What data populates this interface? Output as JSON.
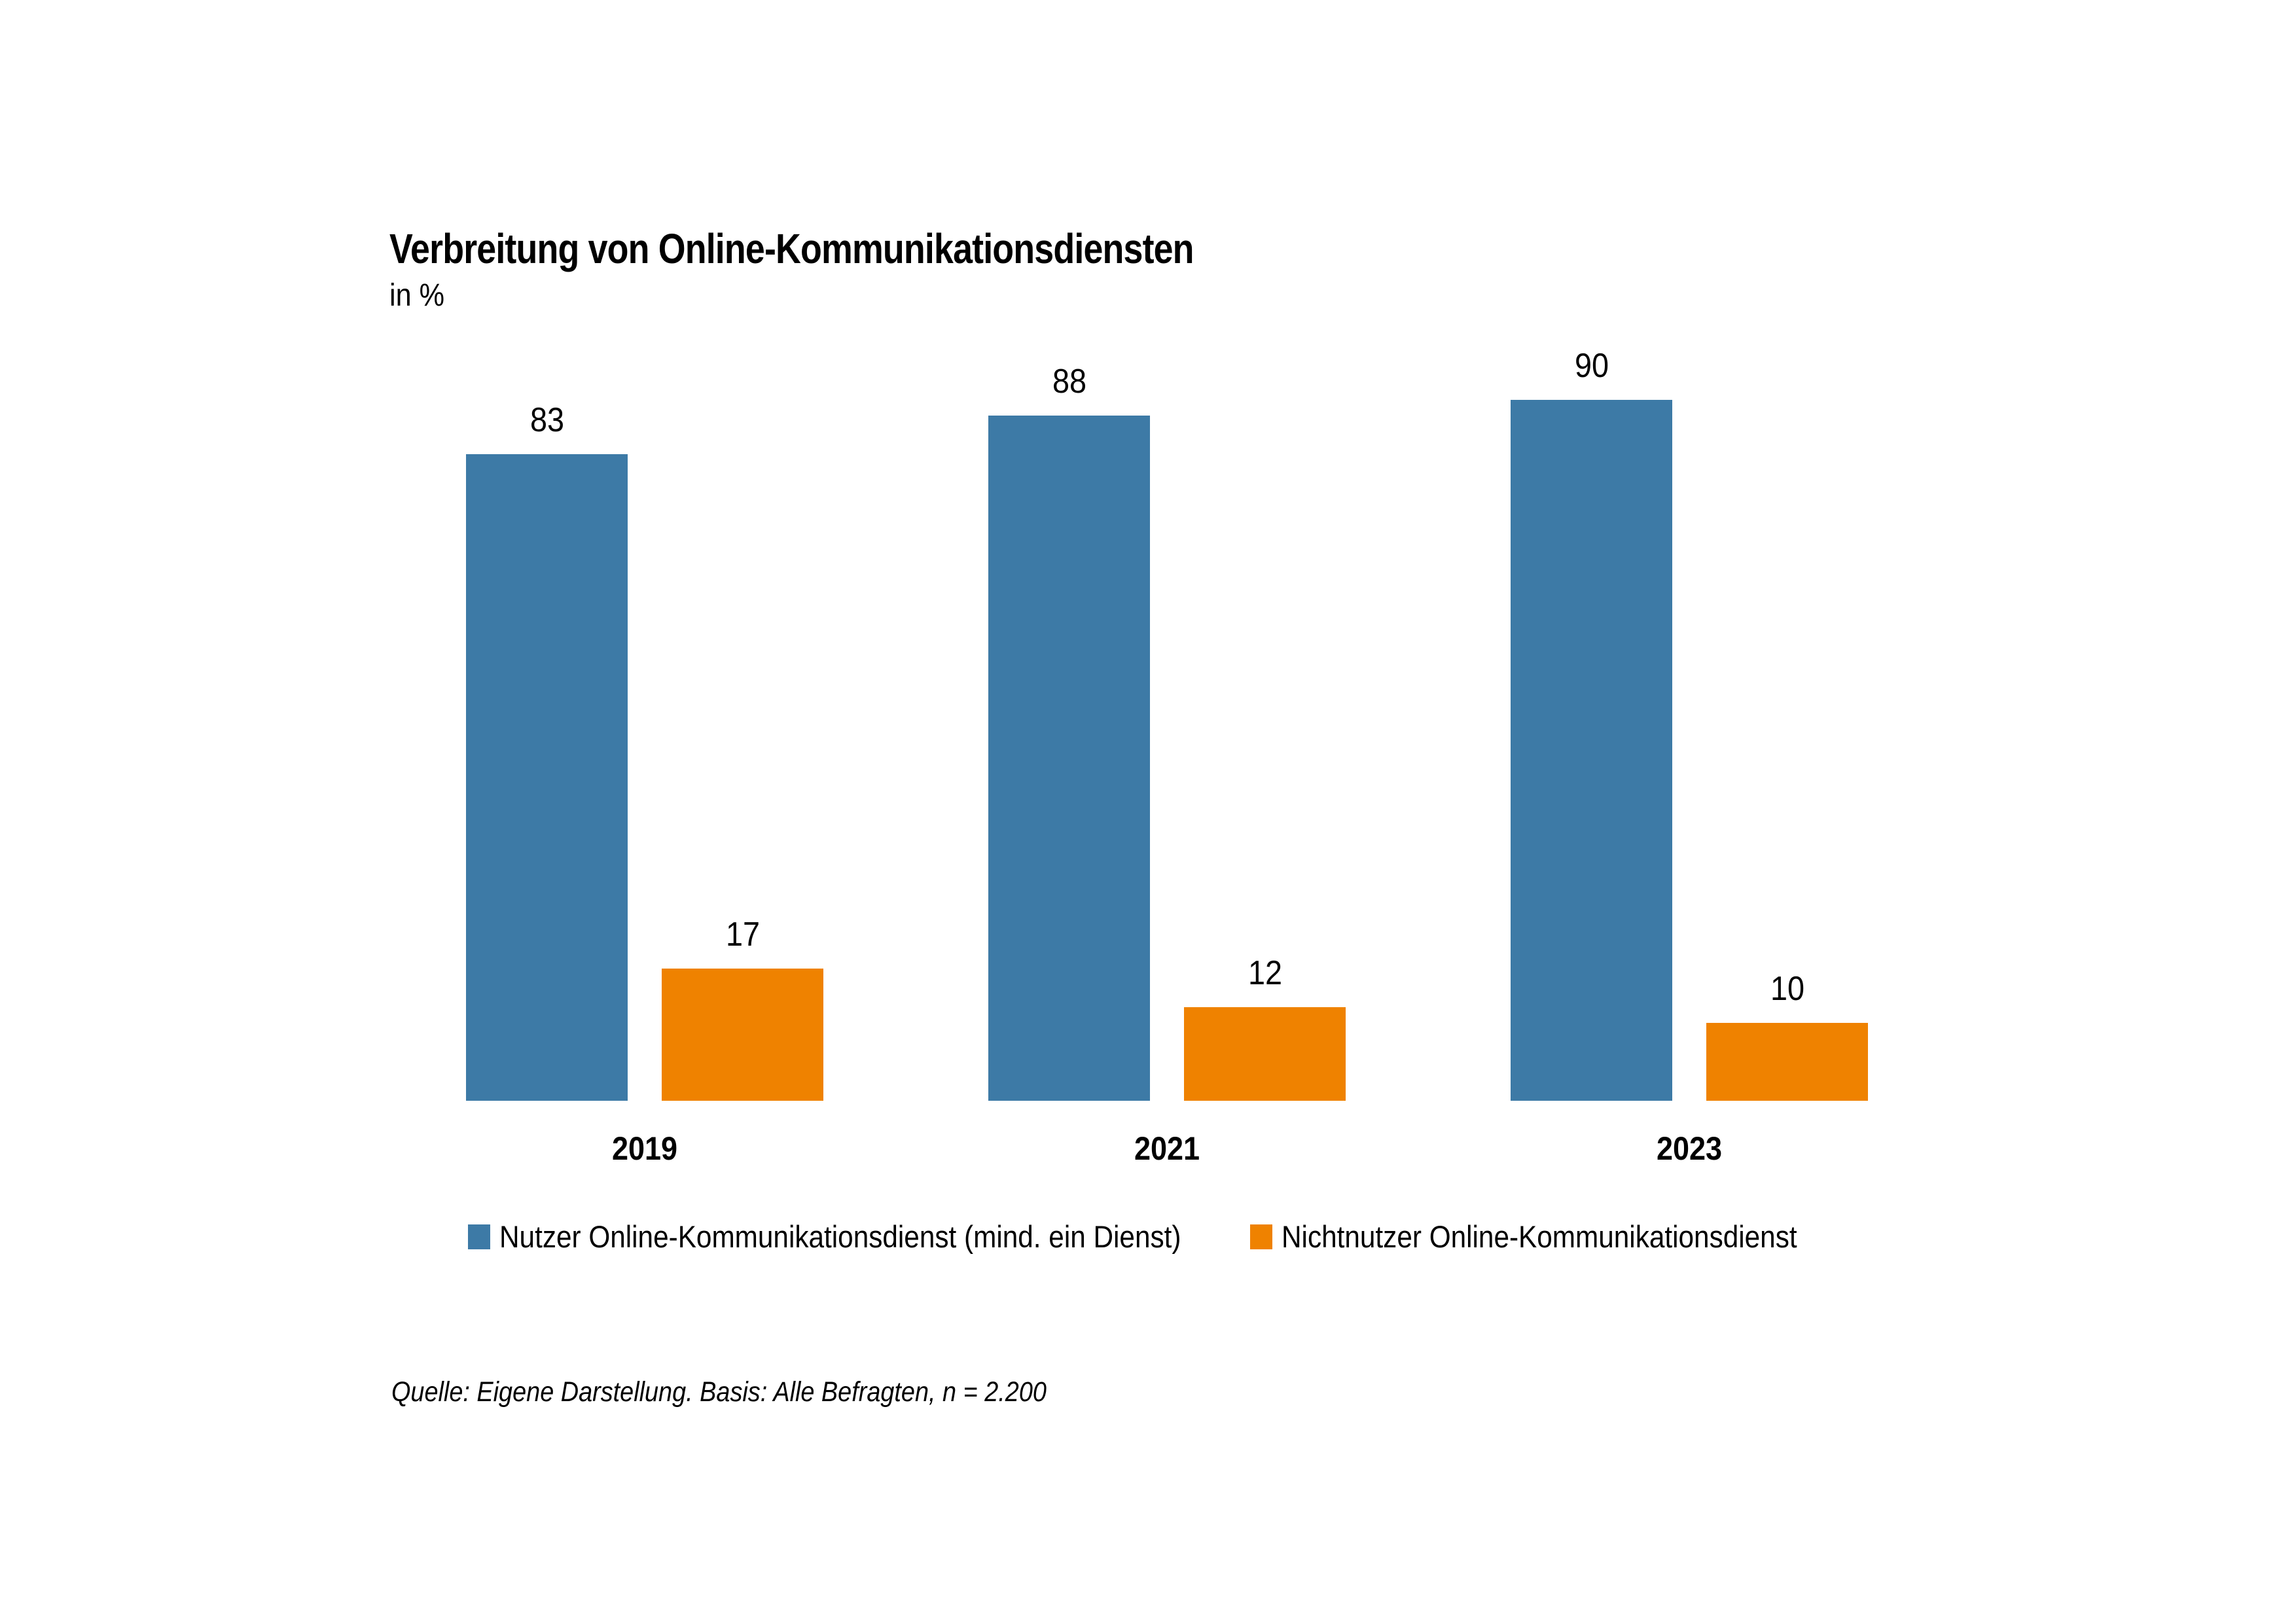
{
  "page": {
    "background": "#FFFFFF"
  },
  "header": {
    "title": "Verbreitung von Online-Kommunikationsdiensten",
    "subtitle": "in %"
  },
  "chart_data": {
    "type": "bar",
    "title": "Verbreitung von Online-Kommunikationsdiensten",
    "subtitle_unit": "in %",
    "categories": [
      "2019",
      "2021",
      "2023"
    ],
    "series": [
      {
        "name": "Nutzer Online-Kommunikationsdienst (mind. ein Dienst)",
        "color": "#3D7AA6",
        "values": [
          83,
          88,
          90
        ]
      },
      {
        "name": "Nichtnutzer Online-Kommunikationsdienst",
        "color": "#EF8200",
        "values": [
          17,
          12,
          10
        ]
      }
    ],
    "ylim": [
      0,
      100
    ],
    "grid": false,
    "axis_lines": false,
    "data_labels": true,
    "legend_position": "bottom"
  },
  "source_note": "Quelle: Eigene Darstellung. Basis: Alle Befragten, n = 2.200"
}
